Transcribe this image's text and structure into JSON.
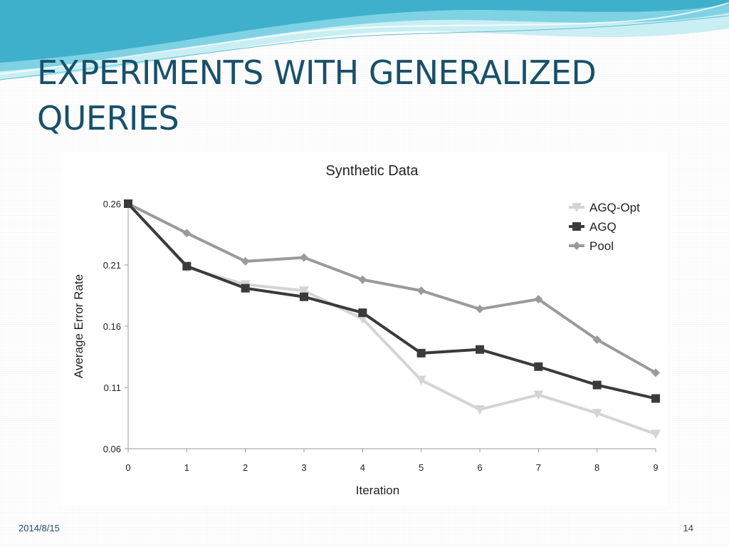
{
  "slide": {
    "title": "EXPERIMENTS WITH GENERALIZED QUERIES",
    "footer_date": "2014/8/15",
    "page_number": "14"
  },
  "colors": {
    "title": "#17506a",
    "wave_light": "#bfe9f0",
    "wave_mid": "#5cc6db",
    "wave_dark": "#2a9cb8"
  },
  "chart_data": {
    "type": "line",
    "title": "Synthetic Data",
    "xlabel": "Iteration",
    "ylabel": "Average Error Rate",
    "x": [
      0,
      1,
      2,
      3,
      4,
      5,
      6,
      7,
      8,
      9
    ],
    "xticks": [
      "0",
      "1",
      "2",
      "3",
      "4",
      "5",
      "6",
      "7",
      "8",
      "9"
    ],
    "yticks": [
      "0.06",
      "0.11",
      "0.16",
      "0.21",
      "0.26"
    ],
    "ylim": [
      0.06,
      0.26
    ],
    "grid": false,
    "legend_position": "top-right",
    "series": [
      {
        "name": "AGQ-Opt",
        "marker": "triangle-down",
        "color": "#d4d4d4",
        "values": [
          0.26,
          0.208,
          0.194,
          0.189,
          0.166,
          0.116,
          0.092,
          0.104,
          0.089,
          0.072
        ]
      },
      {
        "name": "AGQ",
        "marker": "square",
        "color": "#3a3a3a",
        "values": [
          0.26,
          0.209,
          0.191,
          0.184,
          0.171,
          0.138,
          0.141,
          0.127,
          0.112,
          0.101
        ]
      },
      {
        "name": "Pool",
        "marker": "diamond",
        "color": "#9a9a9a",
        "values": [
          0.26,
          0.236,
          0.213,
          0.216,
          0.198,
          0.189,
          0.174,
          0.182,
          0.149,
          0.122
        ]
      }
    ]
  }
}
